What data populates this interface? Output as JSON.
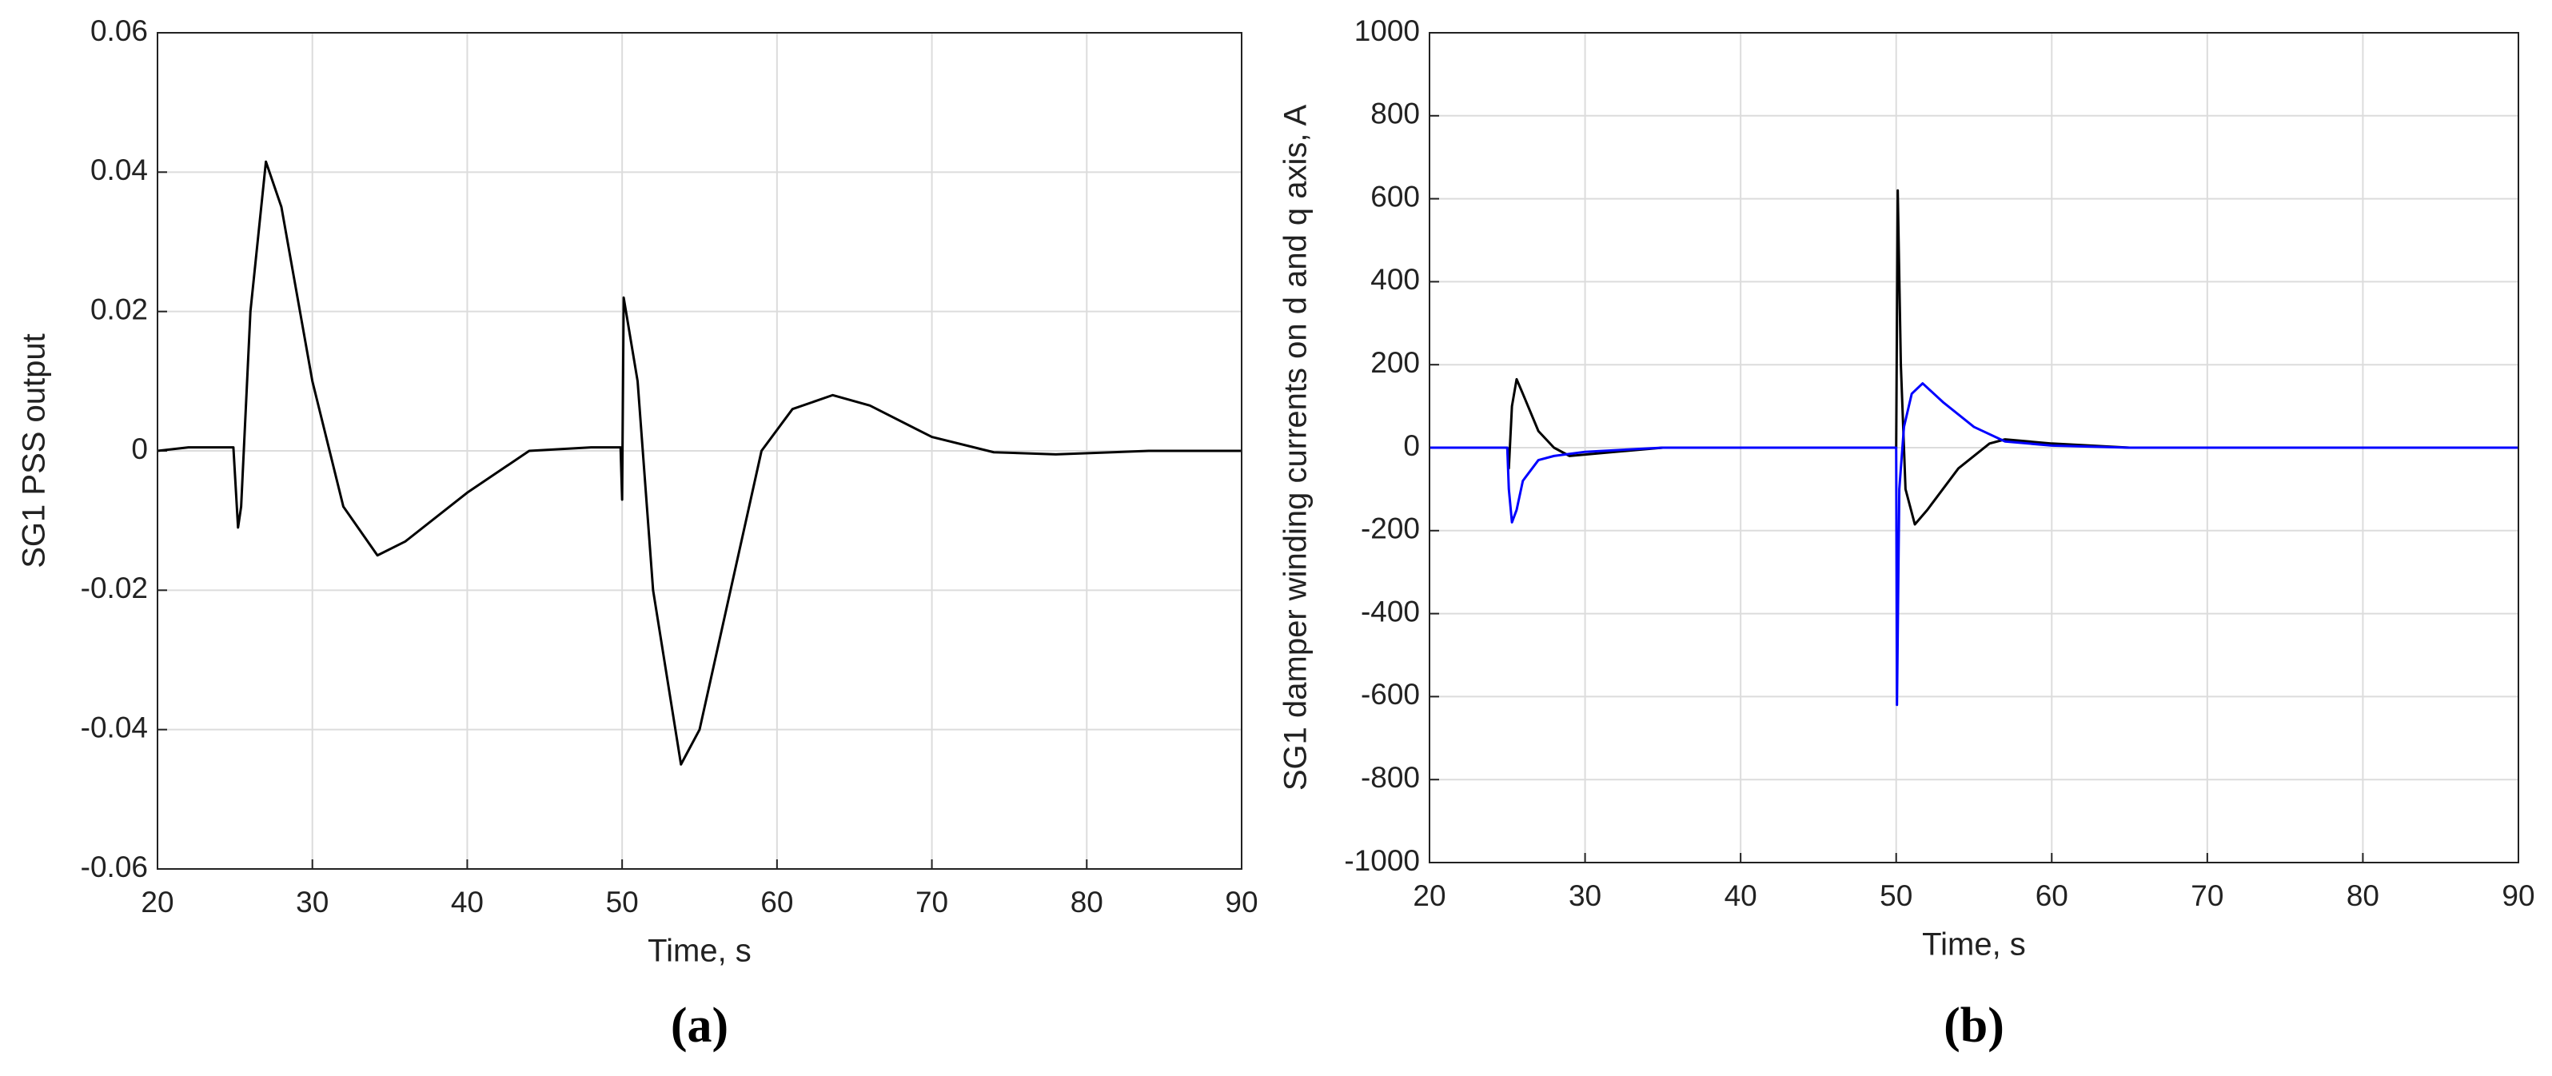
{
  "chart_data": [
    {
      "type": "line",
      "label": "(a)",
      "xlabel": "Time, s",
      "ylabel": "SG1 PSS output",
      "xlim": [
        20,
        90
      ],
      "xticks": [
        20,
        30,
        40,
        50,
        60,
        70,
        80,
        90
      ],
      "ylim": [
        -0.06,
        0.06
      ],
      "yticks": [
        -0.06,
        -0.04,
        -0.02,
        0,
        0.02,
        0.04,
        0.06
      ],
      "grid": true,
      "series": [
        {
          "color": "#000000",
          "x": [
            20,
            22,
            24.9,
            25.2,
            25.4,
            26,
            27,
            28,
            30,
            32,
            34.2,
            36,
            40,
            44,
            48,
            49.9,
            50,
            50.1,
            50.4,
            51,
            52,
            53.8,
            55,
            57,
            59,
            61,
            63.6,
            66,
            70,
            74,
            78,
            84,
            90
          ],
          "values": [
            0,
            0.0005,
            0.0005,
            -0.011,
            -0.008,
            0.02,
            0.0415,
            0.035,
            0.01,
            -0.008,
            -0.015,
            -0.013,
            -0.006,
            0,
            0.0005,
            0.0005,
            -0.007,
            0.022,
            0.018,
            0.01,
            -0.02,
            -0.045,
            -0.04,
            -0.02,
            0,
            0.006,
            0.008,
            0.0065,
            0.002,
            -0.0002,
            -0.0005,
            0,
            0
          ]
        }
      ]
    },
    {
      "type": "line",
      "label": "(b)",
      "xlabel": "Time, s",
      "ylabel": "SG1 damper winding currents on d and q axis, A",
      "xlim": [
        20,
        90
      ],
      "xticks": [
        20,
        30,
        40,
        50,
        60,
        70,
        80,
        90
      ],
      "ylim": [
        -1000,
        1000
      ],
      "yticks": [
        -1000,
        -800,
        -600,
        -400,
        -200,
        0,
        200,
        400,
        600,
        800,
        1000
      ],
      "grid": true,
      "series": [
        {
          "color": "#000000",
          "x": [
            20,
            25,
            25.1,
            25.3,
            25.6,
            26,
            27,
            28,
            29,
            32,
            35,
            50,
            50.1,
            50.3,
            50.6,
            51.2,
            52,
            54,
            56,
            57,
            60,
            65,
            90
          ],
          "values": [
            0,
            0,
            -50,
            100,
            165,
            130,
            40,
            0,
            -20,
            -10,
            0,
            0,
            620,
            200,
            -100,
            -185,
            -150,
            -50,
            10,
            20,
            10,
            0,
            0
          ]
        },
        {
          "color": "#0000ff",
          "x": [
            20,
            25,
            25.1,
            25.3,
            25.6,
            26,
            27,
            28,
            30,
            35,
            50,
            50.05,
            50.2,
            50.5,
            51,
            51.7,
            53,
            55,
            57,
            60,
            65,
            90
          ],
          "values": [
            0,
            0,
            -100,
            -180,
            -150,
            -80,
            -30,
            -20,
            -10,
            0,
            0,
            -620,
            -100,
            50,
            130,
            155,
            110,
            50,
            15,
            5,
            0,
            0
          ]
        }
      ]
    }
  ]
}
